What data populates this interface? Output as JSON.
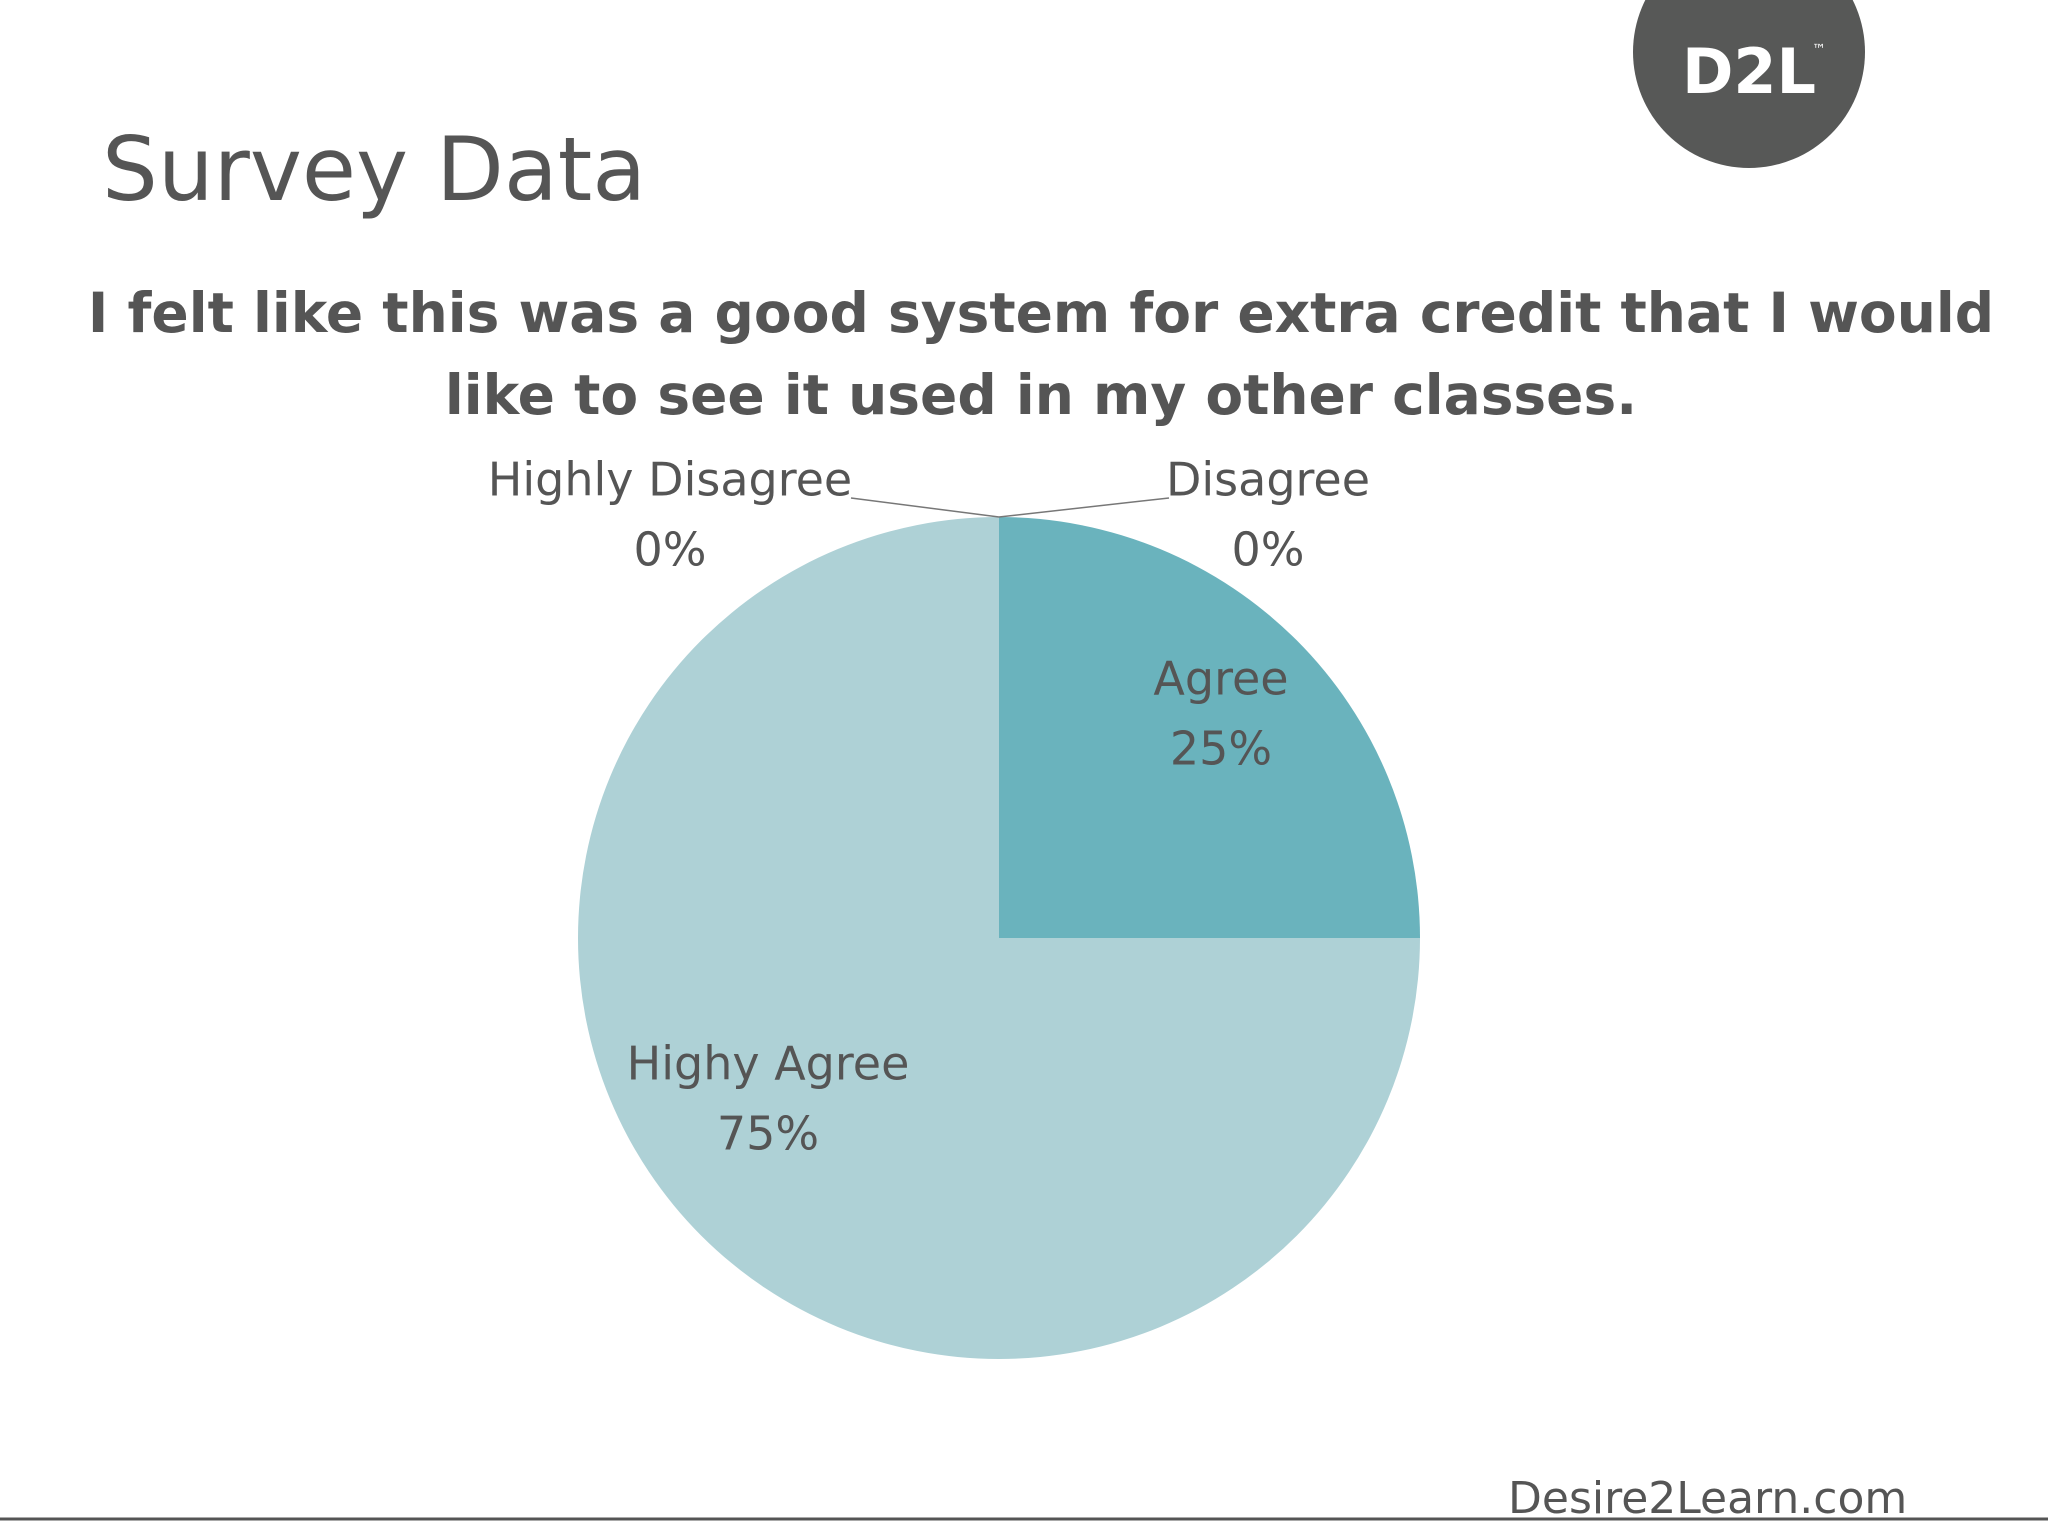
{
  "chart_data": {
    "type": "pie",
    "title": "Survey Data",
    "subtitle": "I felt like this was a good system for extra credit that I would like to see it used in my other classes.",
    "categories": [
      "Disagree",
      "Agree",
      "Highy Agree",
      "Highly Disagree"
    ],
    "values": [
      0,
      25,
      75,
      0
    ],
    "value_labels": [
      "0%",
      "25%",
      "75%",
      "0%"
    ],
    "colors": [
      "#4f97a3",
      "#6ab3bd",
      "#aed1d6",
      "#d6e8eb"
    ]
  },
  "logo": {
    "text": "D2L",
    "trademark": "™"
  },
  "footer": "Desire2Learn.com"
}
